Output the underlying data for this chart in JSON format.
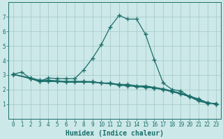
{
  "xlabel": "Humidex (Indice chaleur)",
  "bg_color": "#cce8e8",
  "grid_color": "#aacccc",
  "line_color": "#1a6e6a",
  "xlim": [
    -0.5,
    23.5
  ],
  "ylim": [
    0,
    8
  ],
  "yticks": [
    1,
    2,
    3,
    4,
    5,
    6,
    7
  ],
  "xticks": [
    0,
    1,
    2,
    3,
    4,
    5,
    6,
    7,
    8,
    9,
    10,
    11,
    12,
    13,
    14,
    15,
    16,
    17,
    18,
    19,
    20,
    21,
    22,
    23
  ],
  "series": [
    {
      "x": [
        0,
        1,
        2,
        3,
        4,
        5,
        6,
        7,
        8,
        9,
        10,
        11,
        12,
        13,
        14,
        15,
        16,
        17,
        18,
        19,
        20,
        21,
        22,
        23
      ],
      "y": [
        3.05,
        3.2,
        2.75,
        2.55,
        2.8,
        2.75,
        2.75,
        2.75,
        3.35,
        4.15,
        5.1,
        6.3,
        7.1,
        6.85,
        6.85,
        5.8,
        4.05,
        2.45,
        2.0,
        1.9,
        1.5,
        1.2,
        1.05,
        1.05
      ]
    },
    {
      "x": [
        0,
        2,
        3,
        4,
        5,
        6,
        7,
        8,
        9,
        10,
        11,
        12,
        13,
        14,
        15,
        16,
        17,
        18,
        19,
        20,
        21,
        22,
        23
      ],
      "y": [
        3.05,
        2.75,
        2.55,
        2.55,
        2.55,
        2.55,
        2.55,
        2.55,
        2.55,
        2.45,
        2.45,
        2.35,
        2.35,
        2.25,
        2.25,
        2.15,
        2.05,
        1.9,
        1.75,
        1.55,
        1.35,
        1.1,
        1.0
      ]
    },
    {
      "x": [
        0,
        2,
        3,
        4,
        5,
        6,
        7,
        8,
        9,
        10,
        11,
        12,
        13,
        14,
        15,
        16,
        17,
        18,
        19,
        20,
        21,
        22,
        23
      ],
      "y": [
        3.05,
        2.75,
        2.6,
        2.6,
        2.55,
        2.5,
        2.5,
        2.5,
        2.5,
        2.45,
        2.4,
        2.3,
        2.25,
        2.2,
        2.15,
        2.1,
        2.0,
        1.85,
        1.7,
        1.5,
        1.3,
        1.1,
        1.0
      ]
    },
    {
      "x": [
        0,
        2,
        3,
        4,
        5,
        6,
        7,
        8,
        9,
        10,
        11,
        12,
        13,
        14,
        15,
        16,
        17,
        18,
        19,
        20,
        21,
        22,
        23
      ],
      "y": [
        3.05,
        2.8,
        2.65,
        2.65,
        2.6,
        2.55,
        2.55,
        2.55,
        2.5,
        2.45,
        2.4,
        2.35,
        2.3,
        2.25,
        2.2,
        2.1,
        2.0,
        1.85,
        1.7,
        1.5,
        1.3,
        1.1,
        1.0
      ]
    }
  ],
  "marker": "+",
  "markersize": 4,
  "linewidth": 0.9,
  "tick_fontsize": 5.5,
  "xlabel_fontsize": 7.0
}
